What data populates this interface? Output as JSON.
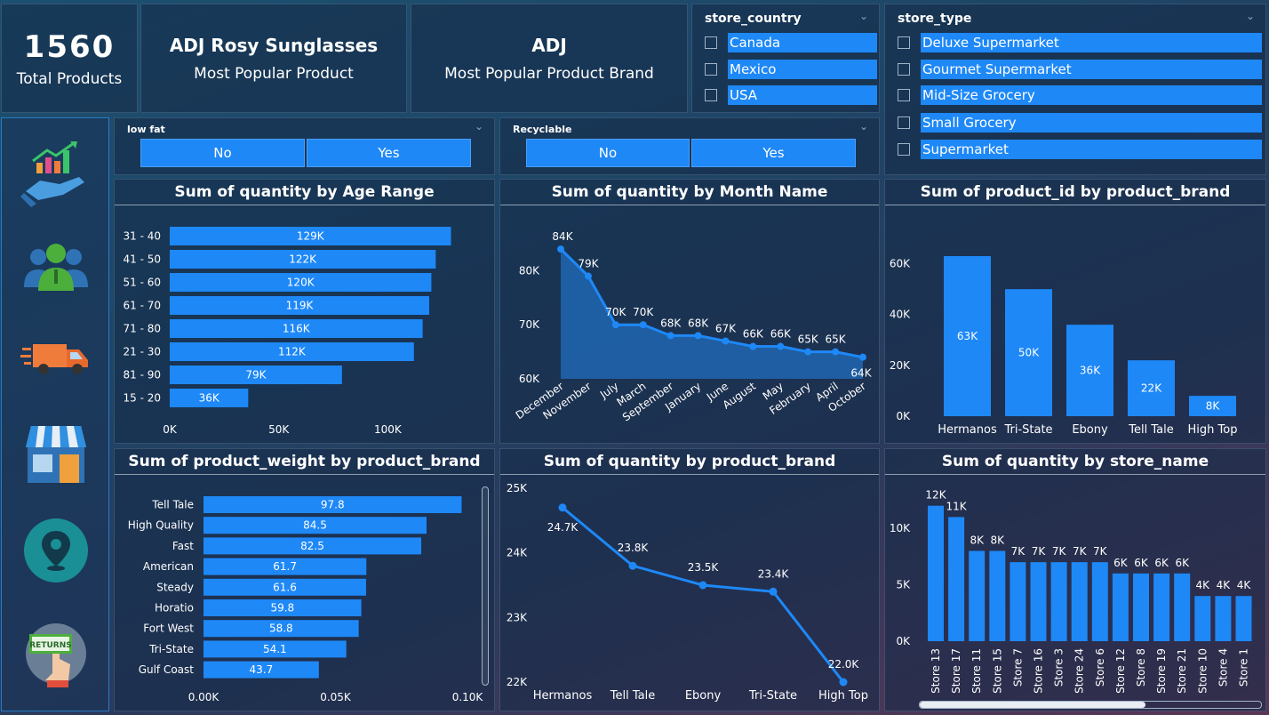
{
  "kpis": {
    "total_products": {
      "value": "1560",
      "label": "Total Products"
    },
    "popular_product": {
      "value": "ADJ Rosy Sunglasses",
      "label": "Most Popular Product"
    },
    "popular_brand": {
      "value": "ADJ",
      "label": "Most Popular Product Brand"
    }
  },
  "slicers": {
    "store_country": {
      "title": "store_country",
      "options": [
        "Canada",
        "Mexico",
        "USA"
      ]
    },
    "store_type": {
      "title": "store_type",
      "options": [
        "Deluxe Supermarket",
        "Gourmet Supermarket",
        "Mid-Size Grocery",
        "Small Grocery",
        "Supermarket"
      ]
    },
    "low_fat": {
      "title": "low fat",
      "options": [
        "No",
        "Yes"
      ]
    },
    "recyclable": {
      "title": "Recyclable",
      "options": [
        "No",
        "Yes"
      ]
    }
  },
  "nav_icons": [
    "sales-growth-icon",
    "customers-icon",
    "delivery-truck-icon",
    "store-icon",
    "location-pin-icon",
    "returns-icon"
  ],
  "colors": {
    "bar": "#1e88f7",
    "accent": "#1e88f7"
  },
  "chart_data": [
    {
      "id": "age",
      "type": "bar",
      "orientation": "horizontal",
      "title": "Sum of quantity by Age Range",
      "categories": [
        "31 - 40",
        "41 - 50",
        "51 - 60",
        "61 - 70",
        "71 - 80",
        "21 - 30",
        "81 - 90",
        "15 - 20"
      ],
      "values": [
        129,
        122,
        120,
        119,
        116,
        112,
        79,
        36
      ],
      "labels": [
        "129K",
        "122K",
        "120K",
        "119K",
        "116K",
        "112K",
        "79K",
        "36K"
      ],
      "xticks": [
        "0K",
        "50K",
        "100K"
      ],
      "xtick_values": [
        0,
        50,
        100
      ],
      "xlim": [
        0,
        150
      ]
    },
    {
      "id": "month",
      "type": "area",
      "title": "Sum of quantity by Month Name",
      "categories": [
        "December",
        "November",
        "July",
        "March",
        "September",
        "January",
        "June",
        "August",
        "May",
        "February",
        "April",
        "October"
      ],
      "values": [
        84,
        79,
        70,
        70,
        68,
        68,
        67,
        66,
        66,
        65,
        65,
        64
      ],
      "labels": [
        "84K",
        "79K",
        "70K",
        "70K",
        "68K",
        "68K",
        "67K",
        "66K",
        "66K",
        "65K",
        "65K",
        "64K"
      ],
      "yticks": [
        "60K",
        "70K",
        "80K"
      ],
      "ytick_values": [
        60,
        70,
        80
      ],
      "ylim": [
        60,
        85
      ]
    },
    {
      "id": "brand_pid",
      "type": "bar",
      "title": "Sum of product_id by product_brand",
      "categories": [
        "Hermanos",
        "Tri-State",
        "Ebony",
        "Tell Tale",
        "High Top"
      ],
      "values": [
        63,
        50,
        36,
        22,
        8
      ],
      "labels": [
        "63K",
        "50K",
        "36K",
        "22K",
        "8K"
      ],
      "yticks": [
        "0K",
        "20K",
        "40K",
        "60K"
      ],
      "ytick_values": [
        0,
        20,
        40,
        60
      ],
      "ylim": [
        0,
        70
      ]
    },
    {
      "id": "weight",
      "type": "bar",
      "orientation": "horizontal",
      "title": "Sum of product_weight by product_brand",
      "categories": [
        "Tell Tale",
        "High Quality",
        "Fast",
        "American",
        "Steady",
        "Horatio",
        "Fort West",
        "Tri-State",
        "Gulf Coast"
      ],
      "values": [
        97.8,
        84.5,
        82.5,
        61.7,
        61.6,
        59.8,
        58.8,
        54.1,
        43.7
      ],
      "labels": [
        "97.8",
        "84.5",
        "82.5",
        "61.7",
        "61.6",
        "59.8",
        "58.8",
        "54.1",
        "43.7"
      ],
      "xticks": [
        "0.00K",
        "0.05K",
        "0.10K"
      ],
      "xtick_values": [
        0,
        50,
        100
      ],
      "xlim": [
        0,
        100
      ]
    },
    {
      "id": "brand_qty",
      "type": "line",
      "title": "Sum of quantity by product_brand",
      "categories": [
        "Hermanos",
        "Tell Tale",
        "Ebony",
        "Tri-State",
        "High Top"
      ],
      "values": [
        24.7,
        23.8,
        23.5,
        23.4,
        22.0
      ],
      "labels": [
        "24.7K",
        "23.8K",
        "23.5K",
        "23.4K",
        "22.0K"
      ],
      "yticks": [
        "22K",
        "23K",
        "24K",
        "25K"
      ],
      "ytick_values": [
        22,
        23,
        24,
        25
      ],
      "ylim": [
        22,
        25
      ]
    },
    {
      "id": "store",
      "type": "bar",
      "title": "Sum of quantity by store_name",
      "categories": [
        "Store 13",
        "Store 17",
        "Store 11",
        "Store 15",
        "Store 7",
        "Store 16",
        "Store 3",
        "Store 24",
        "Store 6",
        "Store 12",
        "Store 8",
        "Store 19",
        "Store 21",
        "Store 10",
        "Store 4",
        "Store 1"
      ],
      "values": [
        12,
        11,
        8,
        8,
        7,
        7,
        7,
        7,
        7,
        6,
        6,
        6,
        6,
        4,
        4,
        4
      ],
      "labels": [
        "12K",
        "11K",
        "8K",
        "8K",
        "7K",
        "7K",
        "7K",
        "7K",
        "7K",
        "6K",
        "6K",
        "6K",
        "6K",
        "4K",
        "4K",
        "4K"
      ],
      "yticks": [
        "0K",
        "5K",
        "10K"
      ],
      "ytick_values": [
        0,
        5,
        10
      ],
      "ylim": [
        0,
        13
      ]
    }
  ]
}
